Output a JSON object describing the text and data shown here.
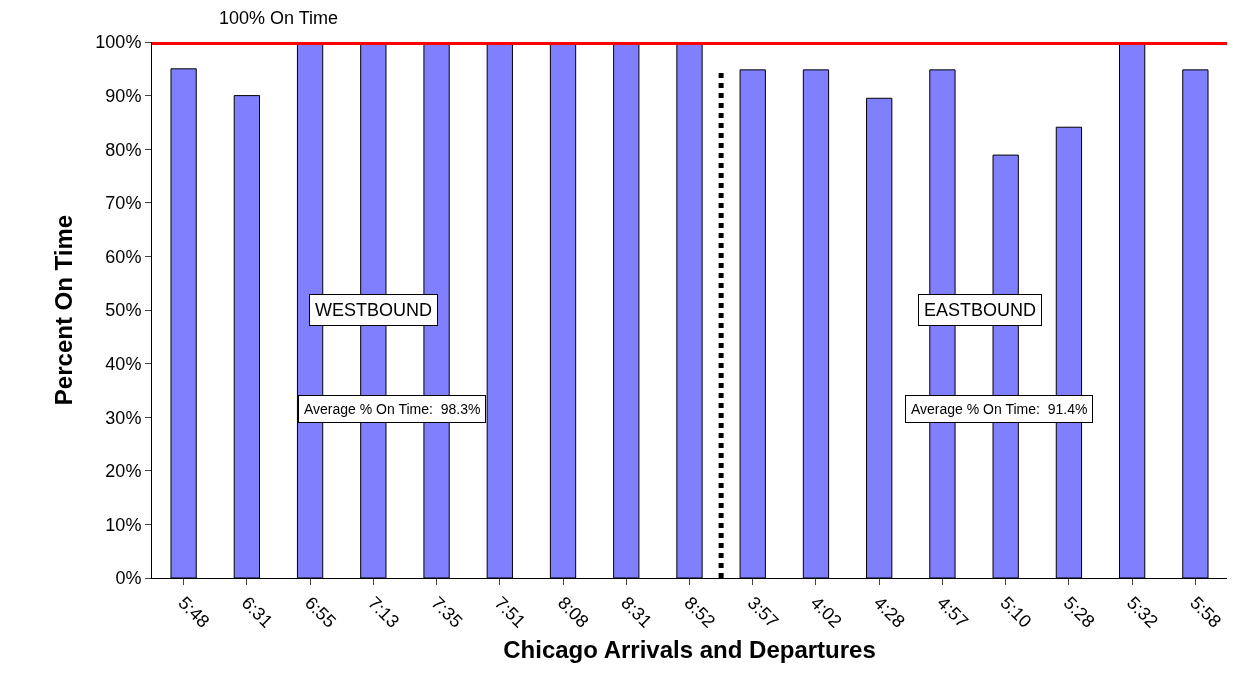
{
  "chart_data": {
    "type": "bar",
    "xlabel": "Chicago Arrivals and Departures",
    "ylabel": "Percent On Time",
    "categories": [
      "5:48",
      "6:31",
      "6:55",
      "7:13",
      "7:35",
      "7:51",
      "8:08",
      "8:31",
      "8:52",
      "3:57",
      "4:02",
      "4:28",
      "4:57",
      "5:10",
      "5:28",
      "5:32",
      "5:58"
    ],
    "series": [
      {
        "color": "#8080ff",
        "values": [
          95,
          90,
          100,
          100,
          100,
          100,
          100,
          100,
          100,
          94.8,
          94.8,
          89.5,
          94.8,
          78.9,
          84.1,
          100,
          94.8
        ]
      }
    ],
    "ylim": [
      0,
      100
    ],
    "yticks": [
      {
        "value": 0,
        "label": "0%"
      },
      {
        "value": 10,
        "label": "10%"
      },
      {
        "value": 20,
        "label": "20%"
      },
      {
        "value": 30,
        "label": "30%"
      },
      {
        "value": 40,
        "label": "40%"
      },
      {
        "value": 50,
        "label": "50%"
      },
      {
        "value": 60,
        "label": "60%"
      },
      {
        "value": 70,
        "label": "70%"
      },
      {
        "value": 80,
        "label": "80%"
      },
      {
        "value": 90,
        "label": "90%"
      },
      {
        "value": 100,
        "label": "100%"
      }
    ],
    "grid": false,
    "ref_lines": [
      {
        "axis": "y",
        "value": 100,
        "label": "100% On Time",
        "color": "#ff0000",
        "line_style": "solid"
      }
    ],
    "annotations": [
      "WESTBOUND",
      "EASTBOUND",
      "Average % On Time:  98.3%",
      "Average % On Time:  91.4%"
    ]
  }
}
